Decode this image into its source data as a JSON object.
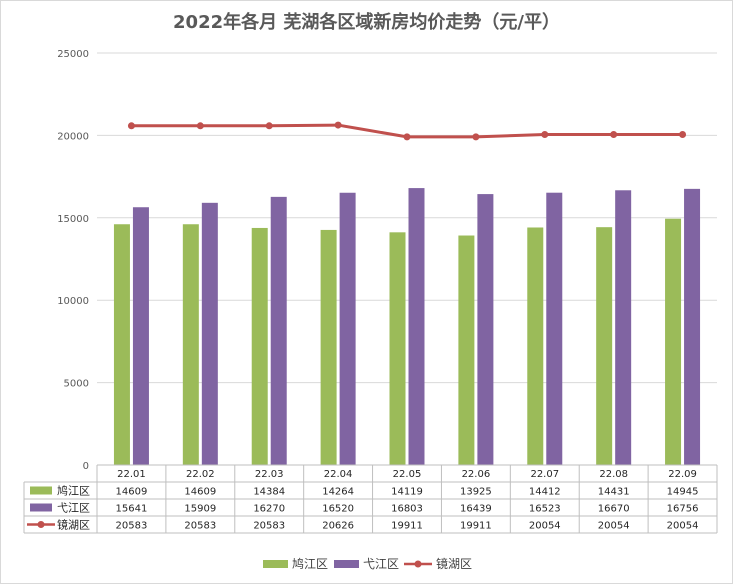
{
  "chart_data": {
    "type": "bar",
    "title": "2022年各月 芜湖各区域新房均价走势（元/平）",
    "categories": [
      "22.01",
      "22.02",
      "22.03",
      "22.04",
      "22.05",
      "22.06",
      "22.07",
      "22.08",
      "22.09"
    ],
    "ylim": [
      0,
      25000
    ],
    "yticks": [
      0,
      5000,
      10000,
      15000,
      20000,
      25000
    ],
    "grid": true,
    "legend_position": "bottom",
    "series": [
      {
        "name": "鸠江区",
        "type": "bar",
        "color": "#9bbb59",
        "values": [
          14609,
          14609,
          14384,
          14264,
          14119,
          13925,
          14412,
          14431,
          14945
        ]
      },
      {
        "name": "弋江区",
        "type": "bar",
        "color": "#8064a2",
        "values": [
          15641,
          15909,
          16270,
          16520,
          16803,
          16439,
          16523,
          16670,
          16756
        ]
      },
      {
        "name": "镜湖区",
        "type": "line",
        "color": "#c0504d",
        "values": [
          20583,
          20583,
          20583,
          20626,
          19911,
          19911,
          20054,
          20054,
          20054
        ]
      }
    ]
  }
}
